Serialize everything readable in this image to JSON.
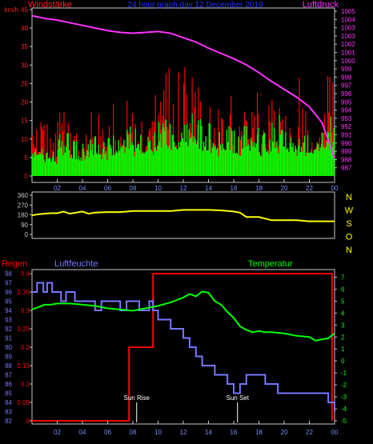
{
  "colors": {
    "bg": "#000000",
    "frame": "#c8c8c8",
    "wind_label": "#ff2020",
    "title": "#2233ff",
    "pressure": "#ff33ff",
    "gust": "#ff0000",
    "wind": "#00ff00",
    "dir": "#ffff00",
    "nwso": "#ffff00",
    "rain": "#ff0000",
    "humidity": "#7777ff",
    "temp": "#00ff00",
    "sun": "#ffffff",
    "xtick": "#7b8cff"
  },
  "chart_data": [
    {
      "type": "bar",
      "name": "wind",
      "labels": {
        "left": "Windstärke",
        "title": "24 hour graph day  12 December 2019",
        "right": "Luftdruck"
      },
      "y_left": {
        "range": [
          0,
          45
        ],
        "ticks": [
          "0",
          "5",
          "10",
          "15",
          "20",
          "25",
          "30",
          "35",
          "40",
          "45"
        ],
        "unit": "km/h"
      },
      "y_right": {
        "range": [
          986,
          1005
        ],
        "ticks": [
          "987",
          "988",
          "989",
          "990",
          "991",
          "992",
          "993",
          "994",
          "995",
          "996",
          "997",
          "998",
          "999",
          "1000",
          "1001",
          "1002",
          "1003",
          "1003",
          "1004",
          "1005"
        ]
      },
      "x": {
        "range": [
          0,
          24
        ],
        "ticks": [
          "02",
          "04",
          "06",
          "08",
          "10",
          "12",
          "14",
          "16",
          "18",
          "20",
          "22",
          "00"
        ]
      },
      "series": [
        {
          "name": "Luftdruck",
          "type": "line",
          "unit": "hPa",
          "x": [
            0,
            1,
            2,
            3,
            4,
            5,
            6,
            7,
            8,
            9,
            10,
            11,
            12,
            13,
            14,
            15,
            16,
            17,
            18,
            19,
            20,
            21,
            22,
            23,
            24
          ],
          "y": [
            1004.3,
            1004.0,
            1003.8,
            1003.5,
            1003.2,
            1002.9,
            1002.6,
            1002.4,
            1002.3,
            1002.4,
            1002.5,
            1002.3,
            1001.8,
            1001.3,
            1000.6,
            1000.0,
            999.4,
            998.7,
            997.8,
            996.8,
            995.9,
            995.0,
            993.9,
            992.1,
            988.0
          ]
        },
        {
          "name": "Windböen",
          "type": "bar",
          "hourly_peak_kmh": [
            18,
            16,
            25,
            17,
            20,
            20,
            22,
            29,
            24,
            28,
            36,
            28,
            32,
            27,
            25,
            28,
            24,
            27,
            22,
            30,
            26,
            23,
            24,
            39
          ]
        },
        {
          "name": "Windstärke",
          "type": "bar",
          "hourly_peak_kmh": [
            10,
            9,
            14,
            10,
            12,
            12,
            13,
            16,
            15,
            16,
            20,
            17,
            18,
            16,
            15,
            17,
            15,
            16,
            14,
            17,
            16,
            14,
            15,
            20
          ]
        }
      ]
    },
    {
      "type": "line",
      "name": "wind_direction",
      "y": {
        "range": [
          0,
          360
        ],
        "ticks": [
          "0",
          "90",
          "180",
          "270",
          "360"
        ]
      },
      "right_labels": [
        "N",
        "W",
        "S",
        "O",
        "N"
      ],
      "series": [
        {
          "name": "Windrichtung",
          "x": [
            0,
            0.5,
            1,
            1.5,
            2,
            2.5,
            3,
            3.5,
            4,
            4.5,
            5,
            6,
            7,
            8,
            9,
            10,
            11,
            12,
            13,
            14,
            15,
            16,
            16.5,
            17,
            18,
            19,
            20,
            21,
            22,
            23,
            24
          ],
          "y": [
            175,
            185,
            190,
            195,
            195,
            210,
            190,
            200,
            210,
            190,
            200,
            205,
            205,
            215,
            215,
            215,
            215,
            225,
            225,
            225,
            220,
            210,
            200,
            160,
            160,
            130,
            130,
            130,
            120,
            120,
            120
          ]
        }
      ]
    },
    {
      "type": "line",
      "name": "rain_humidity_temp",
      "labels": {
        "rain": "Regen",
        "humidity": "Luftfeuchte",
        "temp": "Temperatur",
        "sunrise": "Sun Rise",
        "sunset": "Sun Set"
      },
      "y_rain": {
        "range": [
          0,
          0.4
        ],
        "ticks": [
          "0",
          "0.05",
          "0.1",
          "0.15",
          "0.2",
          "0.25",
          "0.3",
          "0.35",
          "0.4"
        ],
        "unit": "mm"
      },
      "y_humidity": {
        "range": [
          82,
          98
        ],
        "ticks": [
          "82",
          "83",
          "84",
          "85",
          "86",
          "87",
          "88",
          "89",
          "90",
          "91",
          "92",
          "93",
          "94",
          "95",
          "96",
          "97",
          "98"
        ],
        "unit": "%"
      },
      "y_temp": {
        "range": [
          -5,
          8
        ],
        "ticks": [
          "-5",
          "-4",
          "-3",
          "-2",
          "-1",
          "0",
          "1",
          "2",
          "3",
          "4",
          "5",
          "6",
          "7"
        ],
        "unit": "°C"
      },
      "x": {
        "range": [
          0,
          24
        ],
        "ticks": [
          "02",
          "04",
          "06",
          "08",
          "10",
          "12",
          "14",
          "16",
          "18",
          "20",
          "22",
          "00"
        ]
      },
      "sunrise_hour": 8.3,
      "sunset_hour": 16.3,
      "series": [
        {
          "name": "Regen",
          "x": [
            0,
            7.7,
            7.7,
            9.6,
            9.6,
            23.8,
            23.8
          ],
          "y": [
            0,
            0,
            0.2,
            0.2,
            0.4,
            0.4,
            0
          ]
        },
        {
          "name": "Luftfeuchte",
          "x": [
            0,
            0.4,
            0.9,
            1.2,
            1.6,
            2.0,
            2.3,
            2.7,
            3.0,
            3.4,
            4.0,
            5.0,
            5.5,
            6.0,
            7.0,
            7.5,
            8.0,
            8.5,
            9.0,
            9.3,
            9.6,
            10.0,
            10.5,
            11.0,
            11.5,
            12.0,
            12.5,
            13.0,
            13.5,
            14.0,
            14.5,
            15.0,
            15.5,
            16.0,
            16.5,
            17.0,
            17.5,
            18.0,
            18.5,
            19.0,
            19.5,
            20.0,
            20.5,
            21.0,
            21.5,
            22.0,
            22.5,
            23.0,
            23.5,
            24.0
          ],
          "y": [
            96,
            97,
            96,
            97,
            96,
            96,
            95,
            96,
            96,
            95,
            95,
            94,
            95,
            95,
            94,
            95,
            95,
            94,
            94,
            95,
            94,
            93,
            93,
            92,
            92,
            91,
            90,
            89,
            88,
            88,
            87,
            87,
            86,
            85,
            86,
            87,
            87,
            87,
            86,
            86,
            85,
            85,
            85,
            85,
            85,
            85,
            85,
            85,
            84,
            83
          ]
        },
        {
          "name": "Temperatur",
          "x": [
            0,
            0.5,
            1,
            1.5,
            2,
            3,
            4,
            5,
            6,
            7,
            8,
            9,
            10,
            11,
            12,
            12.5,
            13,
            13.5,
            14,
            14.5,
            15,
            15.5,
            16,
            16.5,
            17,
            17.5,
            18,
            18.5,
            19,
            20,
            21,
            22,
            22.5,
            23,
            23.5,
            24
          ],
          "y": [
            4.3,
            4.5,
            4.7,
            4.7,
            4.8,
            4.8,
            4.7,
            4.6,
            4.4,
            4.3,
            4.2,
            4.4,
            4.6,
            4.9,
            5.3,
            5.6,
            5.4,
            5.8,
            5.7,
            5.0,
            4.7,
            4.1,
            3.6,
            2.9,
            2.6,
            2.4,
            2.5,
            2.4,
            2.4,
            2.3,
            2.1,
            2.0,
            1.7,
            1.8,
            1.9,
            2.3
          ]
        }
      ]
    }
  ]
}
